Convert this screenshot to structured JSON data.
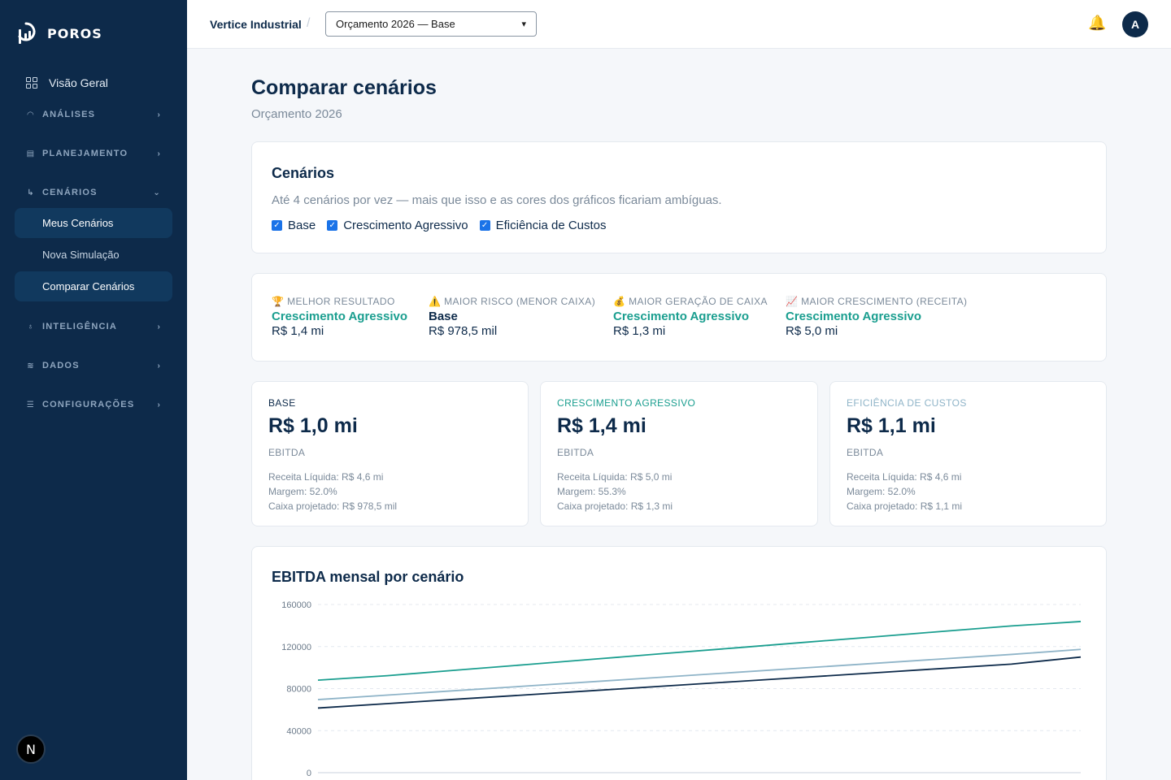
{
  "sidebar": {
    "brand": "POROS",
    "overview": "Visão Geral",
    "sections": [
      {
        "label": "ANÁLISES",
        "icon": "gauge-icon"
      },
      {
        "label": "PLANEJAMENTO",
        "icon": "document-icon"
      },
      {
        "label": "CENÁRIOS",
        "icon": "branch-icon"
      },
      {
        "label": "INTELIGÊNCIA",
        "icon": "lightbulb-icon"
      },
      {
        "label": "DADOS",
        "icon": "database-icon"
      },
      {
        "label": "CONFIGURAÇÕES",
        "icon": "sliders-icon"
      }
    ],
    "scenario_items": [
      "Meus Cenários",
      "Nova Simulação",
      "Comparar Cenários"
    ],
    "badge": "N"
  },
  "topbar": {
    "company": "Vertice Industrial",
    "separator": "/",
    "budget_select": "Orçamento 2026 — Base",
    "avatar": "A"
  },
  "page": {
    "title": "Comparar cenários",
    "subtitle": "Orçamento 2026"
  },
  "scenarios_card": {
    "title": "Cenários",
    "hint": "Até 4 cenários por vez — mais que isso e as cores dos gráficos ficariam ambíguas.",
    "options": [
      "Base",
      "Crescimento Agressivo",
      "Eficiência de Custos"
    ]
  },
  "highlights": [
    {
      "icon": "🏆",
      "label": "MELHOR RESULTADO",
      "scenario": "Crescimento Agressivo",
      "value": "R$ 1,4 mi",
      "color": "#1a9e8f"
    },
    {
      "icon": "⚠️",
      "label": "MAIOR RISCO (MENOR CAIXA)",
      "scenario": "Base",
      "value": "R$ 978,5 mil",
      "color": "#0d2a4a"
    },
    {
      "icon": "💰",
      "label": "MAIOR GERAÇÃO DE CAIXA",
      "scenario": "Crescimento Agressivo",
      "value": "R$ 1,3 mi",
      "color": "#1a9e8f"
    },
    {
      "icon": "📈",
      "label": "MAIOR CRESCIMENTO (RECEITA)",
      "scenario": "Crescimento Agressivo",
      "value": "R$ 5,0 mi",
      "color": "#1a9e8f"
    }
  ],
  "scenario_cards": [
    {
      "label": "BASE",
      "color": "#0d2a4a",
      "value": "R$ 1,0 mi",
      "metric": "EBITDA",
      "lines": [
        "Receita Líquida: R$ 4,6 mi",
        "Margem: 52.0%",
        "Caixa projetado: R$ 978,5 mil"
      ]
    },
    {
      "label": "CRESCIMENTO AGRESSIVO",
      "color": "#1a9e8f",
      "value": "R$ 1,4 mi",
      "metric": "EBITDA",
      "lines": [
        "Receita Líquida: R$ 5,0 mi",
        "Margem: 55.3%",
        "Caixa projetado: R$ 1,3 mi"
      ]
    },
    {
      "label": "EFICIÊNCIA DE CUSTOS",
      "color": "#8fb4c8",
      "value": "R$ 1,1 mi",
      "metric": "EBITDA",
      "lines": [
        "Receita Líquida: R$ 4,6 mi",
        "Margem: 52.0%",
        "Caixa projetado: R$ 1,1 mi"
      ]
    }
  ],
  "chart_data": {
    "type": "line",
    "title": "EBITDA mensal por cenário",
    "ylim": [
      0,
      160000
    ],
    "yticks": [
      "0",
      "40000",
      "80000",
      "120000",
      "160000"
    ],
    "grid": true,
    "x_points": 12,
    "series": [
      {
        "key": "base",
        "color": "#0d2a4a",
        "values": [
          61500,
          65700,
          69900,
          74000,
          78200,
          82400,
          86600,
          90700,
          94900,
          99100,
          103300,
          110000
        ]
      },
      {
        "key": "crescimento",
        "color": "#1a9e8f",
        "values": [
          88000,
          92300,
          97600,
          102800,
          108100,
          113400,
          118600,
          123900,
          129100,
          134400,
          139600,
          143800
        ]
      },
      {
        "key": "eficiencia",
        "color": "#8fb4c8",
        "values": [
          69500,
          73800,
          78100,
          82400,
          86700,
          91000,
          95300,
          99600,
          103900,
          108200,
          112500,
          117300
        ]
      }
    ]
  }
}
